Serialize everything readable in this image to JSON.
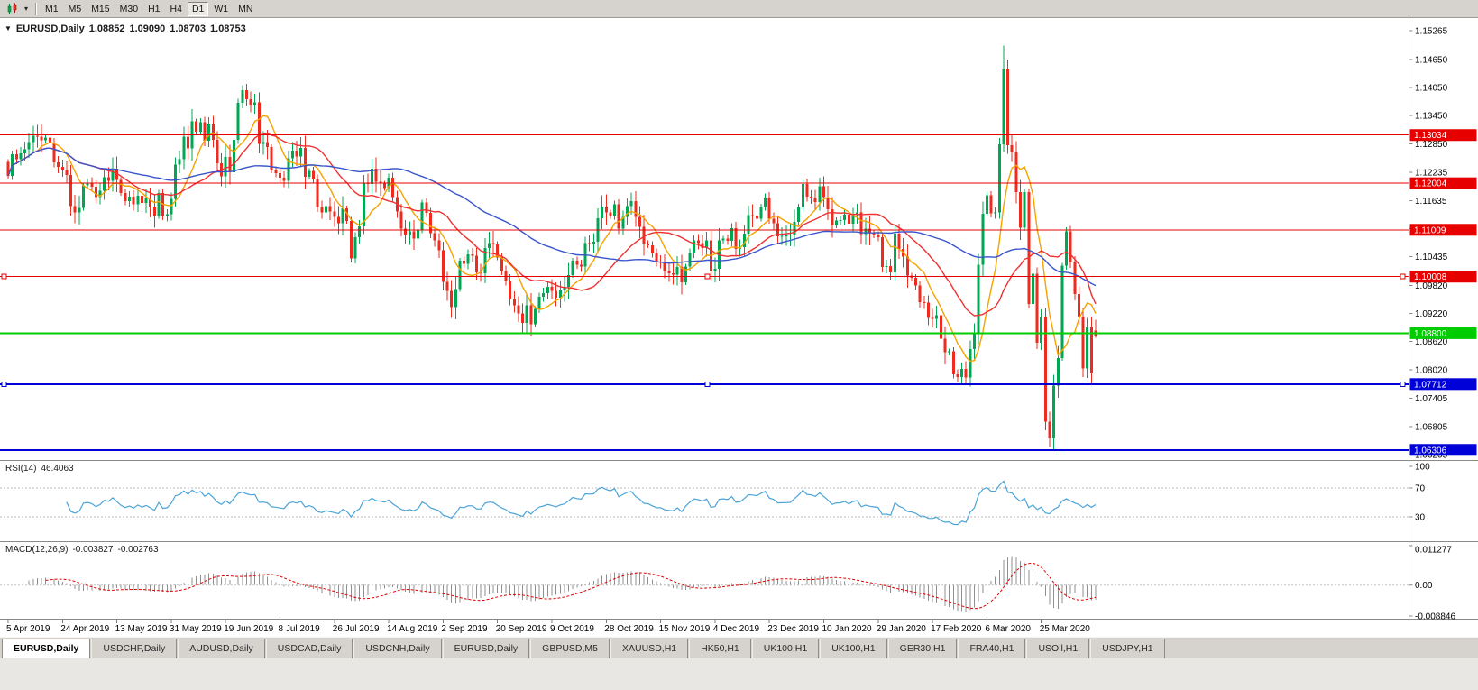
{
  "toolbar": {
    "timeframes": [
      "M1",
      "M5",
      "M15",
      "M30",
      "H1",
      "H4",
      "D1",
      "W1",
      "MN"
    ],
    "active_timeframe": "D1",
    "icons": {
      "chart_type": "candlestick-chart-icon",
      "dropdown_glyph": "▾"
    }
  },
  "chart_header": {
    "collapse_glyph": "▼",
    "symbol_label": "EURUSD,Daily",
    "open": "1.08852",
    "high": "1.09090",
    "low": "1.08703",
    "close": "1.08753"
  },
  "rsi_panel": {
    "label": "RSI(14)",
    "value": "46.4063",
    "line_color": "#4ba4d8",
    "levels": [
      70,
      30
    ],
    "axis_labels": [
      {
        "v": 100,
        "text": "100"
      },
      {
        "v": 70,
        "text": "70"
      },
      {
        "v": 30,
        "text": "30"
      }
    ]
  },
  "macd_panel": {
    "label": "MACD(12,26,9)",
    "value": "-0.003827",
    "signal_value": "-0.002763",
    "histogram_color": "#8f8f8f",
    "signal_color": "#e00000",
    "axis_top": {
      "v": 0.011277,
      "text": "0.011277"
    },
    "axis_zero": {
      "v": 0,
      "text": "0.00"
    },
    "axis_bottom": {
      "v": -0.008846,
      "text": "-0.008846"
    }
  },
  "hlines": [
    {
      "price": 1.13034,
      "label": "1.13034",
      "color": "#e60000",
      "width": 1,
      "handles": false
    },
    {
      "price": 1.12004,
      "label": "1.12004",
      "color": "#e60000",
      "width": 1,
      "handles": false
    },
    {
      "price": 1.11009,
      "label": "1.11009",
      "color": "#e60000",
      "width": 1,
      "handles": false
    },
    {
      "price": 1.10008,
      "label": "1.10008",
      "color": "#e60000",
      "width": 1,
      "handles": true
    },
    {
      "price": 1.088,
      "label": "1.08800",
      "color": "#00cc00",
      "width": 2,
      "handles": false
    },
    {
      "price": 1.07712,
      "label": "1.07712",
      "color": "#0000d9",
      "width": 2,
      "handles": true
    },
    {
      "price": 1.06306,
      "label": "1.06306",
      "color": "#0000d9",
      "width": 2,
      "handles": false
    }
  ],
  "y_axis": {
    "ticks": [
      "1.15265",
      "1.14650",
      "1.14050",
      "1.13450",
      "1.12850",
      "1.12235",
      "1.11635",
      "1.11035",
      "1.10435",
      "1.09820",
      "1.09220",
      "1.08620",
      "1.08020",
      "1.07405",
      "1.06805",
      "1.06205"
    ],
    "max": 1.15265,
    "min": 1.06205
  },
  "x_axis": {
    "dates": [
      "5 Apr 2019",
      "24 Apr 2019",
      "13 May 2019",
      "31 May 2019",
      "19 Jun 2019",
      "8 Jul 2019",
      "26 Jul 2019",
      "14 Aug 2019",
      "2 Sep 2019",
      "20 Sep 2019",
      "9 Oct 2019",
      "28 Oct 2019",
      "15 Nov 2019",
      "4 Dec 2019",
      "23 Dec 2019",
      "10 Jan 2020",
      "29 Jan 2020",
      "17 Feb 2020",
      "6 Mar 2020",
      "25 Mar 2020"
    ],
    "label_every": 13
  },
  "chart_data": {
    "type": "candlestick",
    "symbol": "EURUSD",
    "timeframe": "Daily",
    "title": "EURUSD,Daily 1.08852 1.09090 1.08703 1.08753",
    "ylim": [
      1.06205,
      1.15265
    ],
    "up_color": "#00a651",
    "down_color": "#ee2b1e",
    "last_ohlc": {
      "open": 1.08852,
      "high": 1.0909,
      "low": 1.08703,
      "close": 1.08753
    },
    "extremes": {
      "high": 1.1495,
      "low": 1.0636
    },
    "moving_averages": [
      {
        "period": 8,
        "color": "#f5a200"
      },
      {
        "period": 21,
        "color": "#f03030"
      },
      {
        "period": 55,
        "color": "#3a55cc"
      }
    ],
    "closes": [
      1.1216,
      1.1262,
      1.1252,
      1.1264,
      1.1273,
      1.1288,
      1.1302,
      1.13,
      1.1292,
      1.1298,
      1.1286,
      1.1245,
      1.1235,
      1.123,
      1.1218,
      1.1152,
      1.1138,
      1.1148,
      1.1196,
      1.1202,
      1.1193,
      1.1171,
      1.1184,
      1.1213,
      1.1206,
      1.1232,
      1.1207,
      1.118,
      1.1162,
      1.1172,
      1.1155,
      1.1174,
      1.1158,
      1.1168,
      1.1151,
      1.1131,
      1.118,
      1.113,
      1.1134,
      1.1167,
      1.124,
      1.1252,
      1.13,
      1.1275,
      1.1333,
      1.1311,
      1.1331,
      1.1291,
      1.1328,
      1.1293,
      1.1243,
      1.1215,
      1.1257,
      1.1224,
      1.1293,
      1.1372,
      1.1399,
      1.138,
      1.1368,
      1.1373,
      1.1285,
      1.1288,
      1.1278,
      1.1228,
      1.1222,
      1.1212,
      1.1206,
      1.1254,
      1.127,
      1.1258,
      1.1276,
      1.1214,
      1.1227,
      1.1208,
      1.115,
      1.1138,
      1.1152,
      1.114,
      1.1128,
      1.1115,
      1.1147,
      1.112,
      1.104,
      1.1085,
      1.1108,
      1.1202,
      1.1199,
      1.1232,
      1.1204,
      1.12,
      1.119,
      1.1212,
      1.1171,
      1.114,
      1.1103,
      1.109,
      1.1098,
      1.1082,
      1.11,
      1.1159,
      1.1137,
      1.1094,
      1.1078,
      1.1057,
      1.099,
      1.097,
      1.0936,
      1.0974,
      1.1035,
      1.1028,
      1.1048,
      1.1046,
      1.101,
      1.1008,
      1.1062,
      1.1073,
      1.107,
      1.1042,
      1.1013,
      1.0993,
      1.0953,
      1.094,
      1.0922,
      1.0902,
      1.094,
      1.0899,
      1.0932,
      1.0958,
      1.0966,
      1.0979,
      1.097,
      1.0956,
      1.0971,
      1.0979,
      1.1004,
      1.1035,
      1.1026,
      1.1022,
      1.1073,
      1.1071,
      1.1075,
      1.1126,
      1.1151,
      1.1138,
      1.1131,
      1.1155,
      1.1103,
      1.1128,
      1.1152,
      1.1162,
      1.1128,
      1.1107,
      1.1072,
      1.1068,
      1.105,
      1.1033,
      1.1032,
      1.1013,
      1.1008,
      1.1005,
      1.1021,
      1.0989,
      1.1022,
      1.1052,
      1.1078,
      1.1073,
      1.1062,
      1.1078,
      1.1012,
      1.1018,
      1.1078,
      1.1082,
      1.1077,
      1.1104,
      1.106,
      1.1064,
      1.1093,
      1.1132,
      1.113,
      1.1125,
      1.115,
      1.117,
      1.1125,
      1.1115,
      1.1087,
      1.1088,
      1.1089,
      1.1091,
      1.1118,
      1.115,
      1.1199,
      1.1172,
      1.117,
      1.116,
      1.1194,
      1.1171,
      1.1145,
      1.111,
      1.1121,
      1.1122,
      1.1133,
      1.1114,
      1.1132,
      1.1138,
      1.1092,
      1.1103,
      1.1094,
      1.1089,
      1.1085,
      1.1021,
      1.1023,
      1.101,
      1.1093,
      1.106,
      1.1044,
      1.1003,
      1.0998,
      1.0982,
      1.0946,
      1.0945,
      1.0913,
      1.0911,
      1.0918,
      1.0868,
      1.0839,
      1.0841,
      1.0792,
      1.0786,
      1.0804,
      1.0785,
      1.0846,
      1.088,
      1.1026,
      1.1135,
      1.1175,
      1.1136,
      1.1138,
      1.1284,
      1.1446,
      1.1282,
      1.1267,
      1.1181,
      1.1105,
      1.1181,
      1.0942,
      1.1007,
      1.086,
      1.0915,
      1.0691,
      1.0655,
      1.0768,
      1.0827,
      1.1024,
      1.1098,
      1.1031,
      1.0964,
      1.0915,
      1.0805,
      1.0892,
      1.0796,
      1.0875
    ]
  },
  "tabs": {
    "items": [
      "EURUSD,Daily",
      "USDCHF,Daily",
      "AUDUSD,Daily",
      "USDCAD,Daily",
      "USDCNH,Daily",
      "EURUSD,Daily",
      "GBPUSD,M5",
      "XAUUSD,H1",
      "HK50,H1",
      "UK100,H1",
      "UK100,H1",
      "GER30,H1",
      "FRA40,H1",
      "USOil,H1",
      "USDJPY,H1"
    ],
    "active_index": 0
  }
}
